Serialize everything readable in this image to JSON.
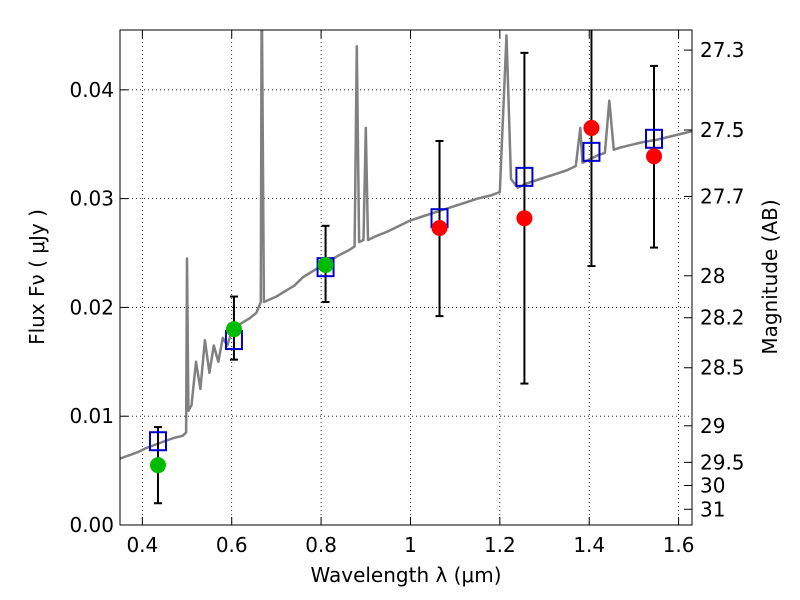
{
  "chart_data": {
    "type": "scatter",
    "xlabel": "Wavelength  λ (μm)",
    "ylabel": "Flux  Fν  ( μJy )",
    "y2label": "Magnitude (AB)",
    "xlim": [
      0.35,
      1.63
    ],
    "ylim": [
      0.0,
      0.0455
    ],
    "grid": true,
    "x_ticks": [
      {
        "v": 0.4,
        "label": "0.4"
      },
      {
        "v": 0.6,
        "label": "0.6"
      },
      {
        "v": 0.8,
        "label": "0.8"
      },
      {
        "v": 1.0,
        "label": "1"
      },
      {
        "v": 1.2,
        "label": "1.2"
      },
      {
        "v": 1.4,
        "label": "1.4"
      },
      {
        "v": 1.6,
        "label": "1.6"
      }
    ],
    "y_ticks": [
      {
        "v": 0.0,
        "label": "0.00"
      },
      {
        "v": 0.01,
        "label": "0.01"
      },
      {
        "v": 0.02,
        "label": "0.02"
      },
      {
        "v": 0.03,
        "label": "0.03"
      },
      {
        "v": 0.04,
        "label": "0.04"
      }
    ],
    "mag_ticks": [
      {
        "v": 27.3,
        "label": "27.3"
      },
      {
        "v": 27.5,
        "label": "27.5"
      },
      {
        "v": 27.7,
        "label": "27.7"
      },
      {
        "v": 28.0,
        "label": "28"
      },
      {
        "v": 28.2,
        "label": "28.2"
      },
      {
        "v": 28.5,
        "label": "28.5"
      },
      {
        "v": 29.0,
        "label": "29"
      },
      {
        "v": 29.5,
        "label": "29.5"
      },
      {
        "v": 30.0,
        "label": "30"
      },
      {
        "v": 31.0,
        "label": "31"
      }
    ],
    "colors": {
      "spectrum": "#808080",
      "model": "#0000cc",
      "green": "#00bb00",
      "red": "#ff0000",
      "errorbar": "#000000"
    },
    "spectrum": [
      [
        0.35,
        0.0061
      ],
      [
        0.37,
        0.0064
      ],
      [
        0.39,
        0.0067
      ],
      [
        0.41,
        0.0071
      ],
      [
        0.43,
        0.0074
      ],
      [
        0.45,
        0.0077
      ],
      [
        0.47,
        0.008
      ],
      [
        0.49,
        0.0082
      ],
      [
        0.498,
        0.0085
      ],
      [
        0.5,
        0.0245
      ],
      [
        0.503,
        0.0105
      ],
      [
        0.51,
        0.011
      ],
      [
        0.52,
        0.015
      ],
      [
        0.53,
        0.0125
      ],
      [
        0.54,
        0.017
      ],
      [
        0.55,
        0.014
      ],
      [
        0.56,
        0.0165
      ],
      [
        0.57,
        0.015
      ],
      [
        0.58,
        0.0172
      ],
      [
        0.59,
        0.0165
      ],
      [
        0.6,
        0.0178
      ],
      [
        0.62,
        0.0185
      ],
      [
        0.64,
        0.019
      ],
      [
        0.655,
        0.0195
      ],
      [
        0.665,
        0.0205
      ],
      [
        0.667,
        0.05
      ],
      [
        0.672,
        0.0205
      ],
      [
        0.7,
        0.021
      ],
      [
        0.72,
        0.0215
      ],
      [
        0.74,
        0.022
      ],
      [
        0.76,
        0.0228
      ],
      [
        0.78,
        0.0233
      ],
      [
        0.8,
        0.0238
      ],
      [
        0.82,
        0.0243
      ],
      [
        0.84,
        0.0248
      ],
      [
        0.86,
        0.0252
      ],
      [
        0.875,
        0.0256
      ],
      [
        0.88,
        0.044
      ],
      [
        0.885,
        0.026
      ],
      [
        0.895,
        0.0262
      ],
      [
        0.9,
        0.0365
      ],
      [
        0.905,
        0.0262
      ],
      [
        0.92,
        0.0265
      ],
      [
        0.95,
        0.027
      ],
      [
        0.98,
        0.0276
      ],
      [
        1.0,
        0.028
      ],
      [
        1.03,
        0.0284
      ],
      [
        1.06,
        0.0288
      ],
      [
        1.09,
        0.0292
      ],
      [
        1.12,
        0.0296
      ],
      [
        1.15,
        0.03
      ],
      [
        1.18,
        0.0303
      ],
      [
        1.2,
        0.0306
      ],
      [
        1.215,
        0.045
      ],
      [
        1.225,
        0.0318
      ],
      [
        1.24,
        0.031
      ],
      [
        1.26,
        0.0314
      ],
      [
        1.29,
        0.0318
      ],
      [
        1.32,
        0.0322
      ],
      [
        1.35,
        0.0326
      ],
      [
        1.37,
        0.033
      ],
      [
        1.38,
        0.0365
      ],
      [
        1.385,
        0.0333
      ],
      [
        1.4,
        0.0336
      ],
      [
        1.42,
        0.034
      ],
      [
        1.435,
        0.0342
      ],
      [
        1.445,
        0.039
      ],
      [
        1.455,
        0.0345
      ],
      [
        1.47,
        0.0347
      ],
      [
        1.49,
        0.0349
      ],
      [
        1.52,
        0.0352
      ],
      [
        1.55,
        0.0354
      ],
      [
        1.58,
        0.0357
      ],
      [
        1.61,
        0.036
      ],
      [
        1.63,
        0.0362
      ]
    ],
    "model_points": [
      {
        "x": 0.435,
        "y": 0.0077
      },
      {
        "x": 0.605,
        "y": 0.017
      },
      {
        "x": 0.81,
        "y": 0.0237
      },
      {
        "x": 1.065,
        "y": 0.0282
      },
      {
        "x": 1.255,
        "y": 0.032
      },
      {
        "x": 1.405,
        "y": 0.0343
      },
      {
        "x": 1.545,
        "y": 0.0355
      }
    ],
    "green_points": [
      {
        "x": 0.435,
        "y": 0.0055,
        "ylo": 0.002,
        "yhi": 0.009
      },
      {
        "x": 0.605,
        "y": 0.018,
        "ylo": 0.0152,
        "yhi": 0.021
      },
      {
        "x": 0.81,
        "y": 0.0239,
        "ylo": 0.0205,
        "yhi": 0.0275
      }
    ],
    "red_points": [
      {
        "x": 1.065,
        "y": 0.0273,
        "ylo": 0.0192,
        "yhi": 0.0353
      },
      {
        "x": 1.255,
        "y": 0.0282,
        "ylo": 0.013,
        "yhi": 0.0434
      },
      {
        "x": 1.405,
        "y": 0.0365,
        "ylo": 0.0238,
        "yhi": 0.05
      },
      {
        "x": 1.545,
        "y": 0.0339,
        "ylo": 0.0255,
        "yhi": 0.0422
      }
    ]
  }
}
